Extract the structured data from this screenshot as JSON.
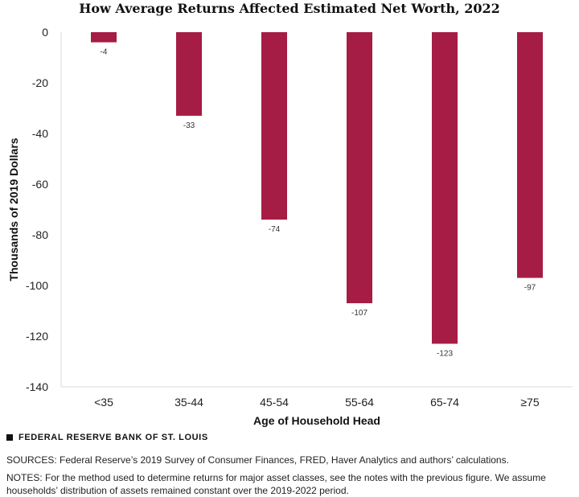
{
  "chart_data": {
    "type": "bar",
    "title": "How Average Returns Affected Estimated Net Worth, 2022",
    "xlabel": "Age of Household Head",
    "ylabel": "Thousands of 2019 Dollars",
    "categories": [
      "<35",
      "35-44",
      "45-54",
      "55-64",
      "65-74",
      "≥75"
    ],
    "values": [
      -4,
      -33,
      -74,
      -107,
      -123,
      -97
    ],
    "data_labels": [
      "-4",
      "-33",
      "-74",
      "-107",
      "-123",
      "-97"
    ],
    "ylim": [
      -140,
      0
    ],
    "yticks": [
      0,
      -20,
      -40,
      -60,
      -80,
      -100,
      -120,
      -140
    ],
    "grid": false,
    "bar_color": "#a51c44"
  },
  "source": "FEDERAL RESERVE BANK OF ST. LOUIS",
  "sources_text": "SOURCES: Federal Reserve’s 2019 Survey of Consumer Finances, FRED, Haver Analytics and authors’ calculations.",
  "notes_text": "NOTES: For the method used to determine returns for major asset classes, see the notes with the previous figure. We assume households’ distribution of assets remained constant over the 2019-2022 period."
}
